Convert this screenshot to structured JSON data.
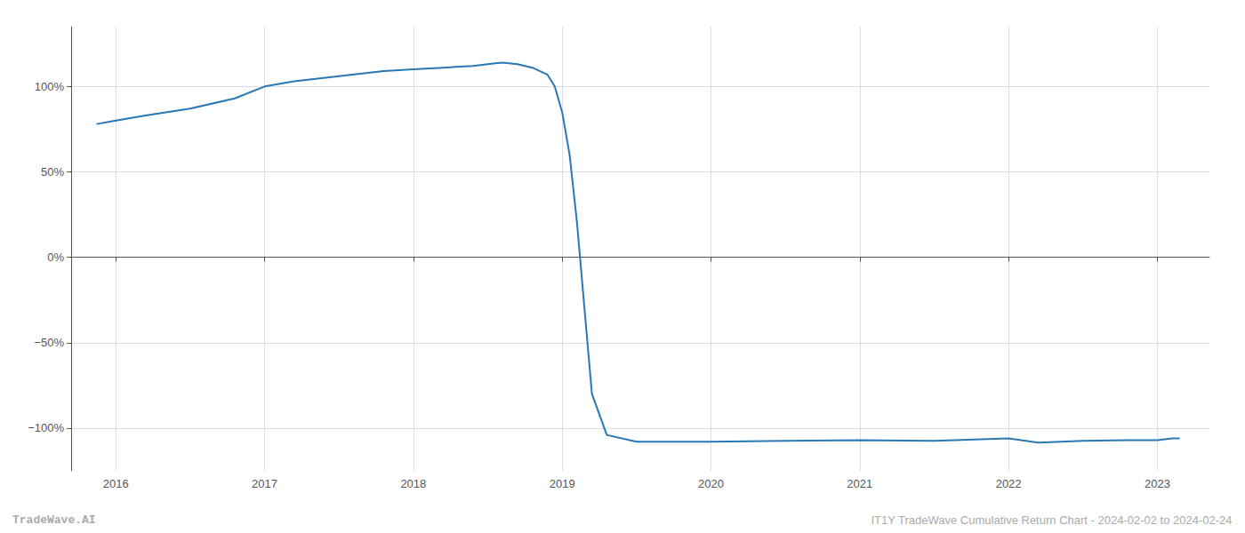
{
  "chart_data": {
    "type": "line",
    "x": [
      2015.87,
      2016.0,
      2016.2,
      2016.5,
      2016.8,
      2017.0,
      2017.2,
      2017.5,
      2017.8,
      2018.0,
      2018.2,
      2018.4,
      2018.5,
      2018.55,
      2018.6,
      2018.7,
      2018.8,
      2018.9,
      2018.95,
      2019.0,
      2019.05,
      2019.1,
      2019.15,
      2019.2,
      2019.3,
      2019.5,
      2020.0,
      2020.5,
      2021.0,
      2021.5,
      2022.0,
      2022.2,
      2022.5,
      2022.8,
      2023.0,
      2023.1,
      2023.15
    ],
    "values": [
      0.78,
      0.8,
      0.83,
      0.87,
      0.93,
      1.0,
      1.03,
      1.06,
      1.09,
      1.1,
      1.11,
      1.12,
      1.13,
      1.135,
      1.14,
      1.13,
      1.11,
      1.07,
      1.0,
      0.85,
      0.6,
      0.2,
      -0.3,
      -0.8,
      -1.04,
      -1.08,
      -1.08,
      -1.075,
      -1.07,
      -1.075,
      -1.06,
      -1.085,
      -1.075,
      -1.07,
      -1.07,
      -1.06,
      -1.06
    ],
    "color": "#2878b5",
    "xlim": [
      2015.7,
      2023.35
    ],
    "ylim": [
      -1.25,
      1.35
    ],
    "xticks": [
      2016,
      2017,
      2018,
      2019,
      2020,
      2021,
      2022,
      2023
    ],
    "yticks": [
      {
        "value": -1.0,
        "label": "−100%"
      },
      {
        "value": -0.5,
        "label": "−50%"
      },
      {
        "value": 0.0,
        "label": "0%"
      },
      {
        "value": 0.5,
        "label": "50%"
      },
      {
        "value": 1.0,
        "label": "100%"
      }
    ],
    "grid": true,
    "annotations": [
      "TradeWave.AI",
      "IT1Y TradeWave Cumulative Return Chart - 2024-02-02 to 2024-02-24"
    ]
  }
}
